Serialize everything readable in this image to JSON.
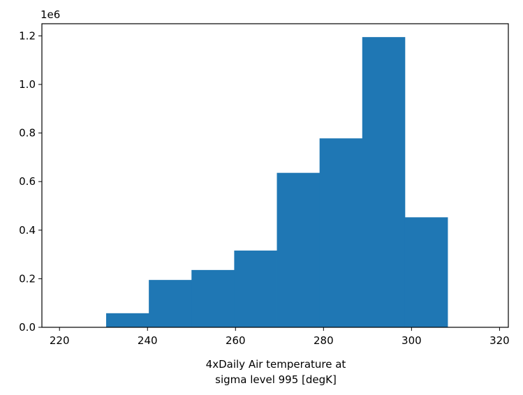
{
  "chart_data": {
    "type": "bar",
    "subtype": "histogram",
    "bins": [
      {
        "x0": 230.6,
        "x1": 240.3,
        "value": 58000
      },
      {
        "x0": 240.3,
        "x1": 250.0,
        "value": 195000
      },
      {
        "x0": 250.0,
        "x1": 259.7,
        "value": 236000
      },
      {
        "x0": 259.7,
        "x1": 269.4,
        "value": 316000
      },
      {
        "x0": 269.4,
        "x1": 279.1,
        "value": 636000
      },
      {
        "x0": 279.1,
        "x1": 288.8,
        "value": 778000
      },
      {
        "x0": 288.8,
        "x1": 298.5,
        "value": 1195000
      },
      {
        "x0": 298.5,
        "x1": 308.2,
        "value": 453000
      }
    ],
    "title": "",
    "xlabel_lines": [
      "4xDaily Air temperature at",
      "sigma level 995 [degK]"
    ],
    "ylabel": "",
    "y_offset_label": "1e6",
    "xlim": [
      216,
      322
    ],
    "ylim": [
      0,
      1.25
    ],
    "y_scale": 1000000,
    "xticks": [
      "220",
      "240",
      "260",
      "280",
      "300",
      "320"
    ],
    "yticks": [
      "0.0",
      "0.2",
      "0.4",
      "0.6",
      "0.8",
      "1.0",
      "1.2"
    ],
    "grid": false,
    "legend": "none",
    "bar_color": "#1f77b4"
  }
}
